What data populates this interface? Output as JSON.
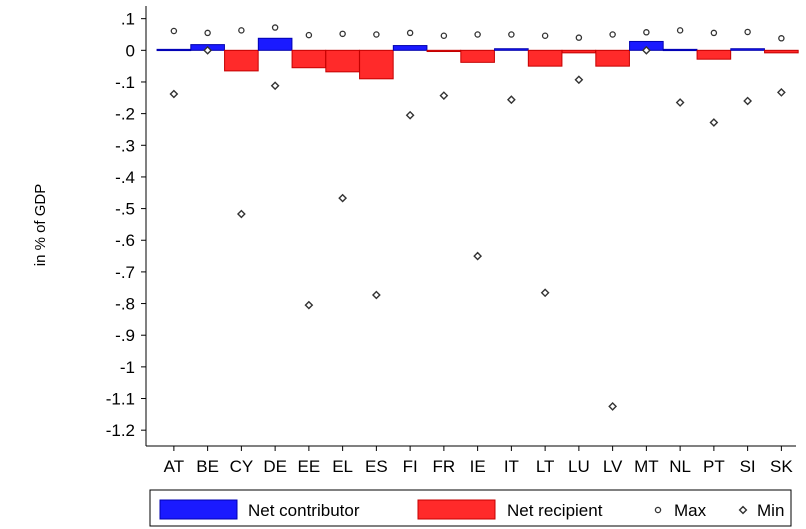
{
  "chart_data": {
    "type": "bar",
    "ylabel": "in % of GDP",
    "ylim": [
      -1.25,
      0.14
    ],
    "yticks": [
      {
        "value": 0.1,
        "label": ".1"
      },
      {
        "value": 0,
        "label": "0"
      },
      {
        "value": -0.1,
        "label": "-.1"
      },
      {
        "value": -0.2,
        "label": "-.2"
      },
      {
        "value": -0.3,
        "label": "-.3"
      },
      {
        "value": -0.4,
        "label": "-.4"
      },
      {
        "value": -0.5,
        "label": "-.5"
      },
      {
        "value": -0.6,
        "label": "-.6"
      },
      {
        "value": -0.7,
        "label": "-.7"
      },
      {
        "value": -0.8,
        "label": "-.8"
      },
      {
        "value": -0.9,
        "label": "-.9"
      },
      {
        "value": -1,
        "label": "-1"
      },
      {
        "value": -1.1,
        "label": "-1.1"
      },
      {
        "value": -1.2,
        "label": "-1.2"
      }
    ],
    "categories": [
      "AT",
      "BE",
      "CY",
      "DE",
      "EE",
      "EL",
      "ES",
      "FI",
      "FR",
      "IE",
      "IT",
      "LT",
      "LU",
      "LV",
      "MT",
      "NL",
      "PT",
      "SI",
      "SK"
    ],
    "net_values": [
      0.003,
      0.018,
      -0.065,
      0.038,
      -0.055,
      -0.068,
      -0.09,
      0.015,
      -0.003,
      -0.038,
      0.005,
      -0.05,
      -0.008,
      -0.05,
      0.028,
      0.003,
      -0.028,
      0.005,
      -0.008
    ],
    "max_values": [
      0.061,
      0.055,
      0.063,
      0.072,
      0.048,
      0.052,
      0.05,
      0.055,
      0.046,
      0.05,
      0.05,
      0.046,
      0.04,
      0.05,
      0.057,
      0.063,
      0.055,
      0.058,
      0.038
    ],
    "min_values": [
      -0.138,
      0.0,
      -0.517,
      -0.112,
      -0.805,
      -0.467,
      -0.773,
      -0.205,
      -0.143,
      -0.65,
      -0.156,
      -0.766,
      -0.093,
      -1.125,
      0.0,
      -0.165,
      -0.228,
      -0.16,
      -0.133
    ],
    "legend": [
      {
        "key": "net_contributor",
        "label": "Net contributor"
      },
      {
        "key": "net_recipient",
        "label": "Net recipient"
      },
      {
        "key": "max",
        "label": "Max"
      },
      {
        "key": "min",
        "label": "Min"
      }
    ],
    "colors": {
      "contributor_fill": "#1a1aff",
      "contributor_stroke": "#0000b0",
      "recipient_fill": "#ff2a2a",
      "recipient_stroke": "#c40000",
      "marker": "#333333",
      "axis": "#000000"
    },
    "legend_placement": "bottom",
    "grid": false
  }
}
